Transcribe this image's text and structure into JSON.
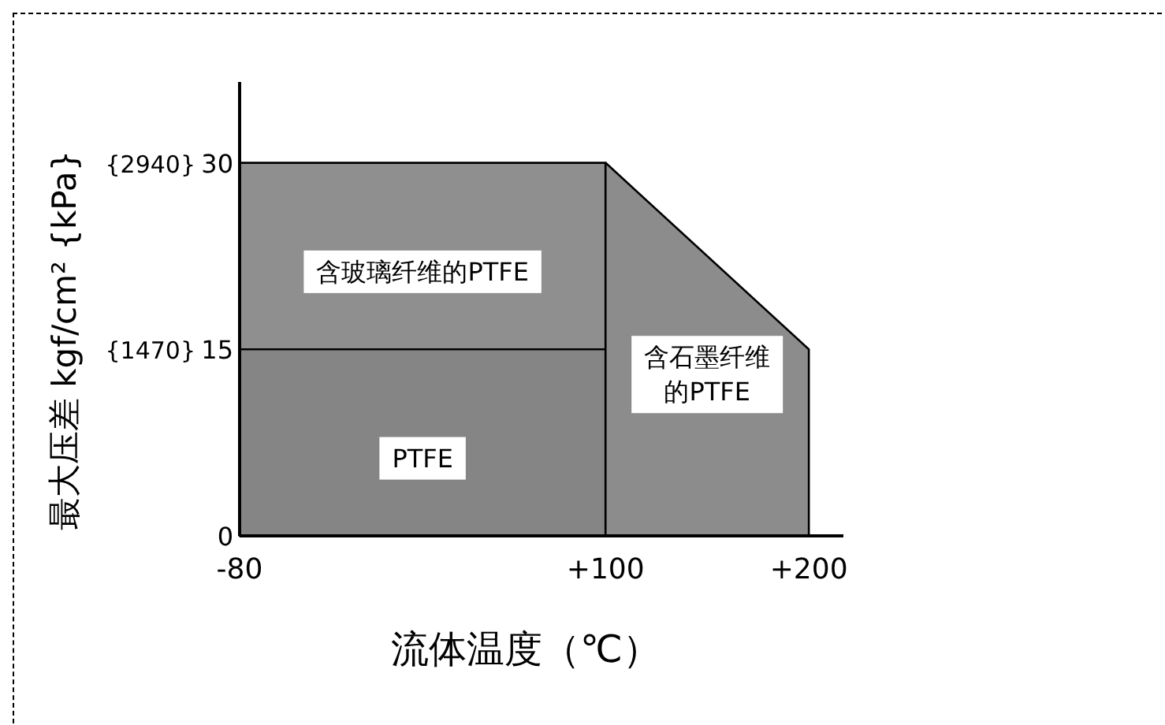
{
  "chart_data": {
    "type": "area",
    "xlabel": "流体温度（℃）",
    "y2label": "最大压差 kgf/cm² {kPa}",
    "xlim": [
      -80,
      217
    ],
    "ylim": [
      0,
      36.5
    ],
    "xticks": [
      -80,
      {
        "value": 100,
        "label": "+100"
      },
      {
        "value": 200,
        "label": "+200"
      }
    ],
    "yticks": [
      0,
      15,
      30
    ],
    "y2lim": [
      0,
      3577
    ],
    "y2ticks": [
      {
        "value": 1470,
        "label": "{1470}"
      },
      {
        "value": 2940,
        "label": "{2940}"
      }
    ],
    "series": [
      {
        "name": "含玻璃纤维的PTFE",
        "color": "#8f8f8f",
        "x": [
          -80,
          100
        ],
        "values": [
          30,
          30
        ]
      },
      {
        "name": "PTFE",
        "color": "#858585",
        "x": [
          -80,
          100
        ],
        "values": [
          15,
          15
        ]
      },
      {
        "name": "含石墨纤维的PTFE",
        "color": "#8c8c8c",
        "x": [
          100,
          200
        ],
        "values": [
          30,
          15
        ]
      }
    ],
    "grid": false,
    "legend": false
  }
}
